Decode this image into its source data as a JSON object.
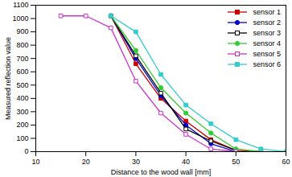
{
  "chart_data": {
    "type": "line",
    "xlabel": "Distance to the wood wall [mm]",
    "ylabel": "Measured reflection value",
    "x": [
      15,
      20,
      25,
      30,
      35,
      40,
      45,
      50,
      55,
      60
    ],
    "xlim": [
      10,
      60
    ],
    "xticks": [
      10,
      20,
      30,
      40,
      50,
      60
    ],
    "ylim": [
      0,
      1100
    ],
    "yticks": [
      0,
      100,
      200,
      300,
      400,
      500,
      600,
      700,
      800,
      900,
      1000,
      1100
    ],
    "grid": false,
    "legend": "upper right",
    "series": [
      {
        "name": "sensor 1",
        "color": "#cc0000",
        "marker": "square",
        "values": [
          null,
          null,
          1020,
          660,
          400,
          230,
          90,
          10,
          0,
          null
        ]
      },
      {
        "name": "sensor 2",
        "color": "#0000cc",
        "marker": "circle",
        "values": [
          null,
          null,
          1020,
          700,
          420,
          200,
          60,
          0,
          null,
          null
        ]
      },
      {
        "name": "sensor 3",
        "color": "#000000",
        "marker": "square-open",
        "values": [
          null,
          null,
          1020,
          720,
          440,
          170,
          80,
          10,
          null,
          null
        ]
      },
      {
        "name": "sensor 4",
        "color": "#33cc33",
        "marker": "circle",
        "values": [
          null,
          null,
          1020,
          760,
          480,
          290,
          140,
          20,
          0,
          null
        ]
      },
      {
        "name": "sensor 5",
        "color": "#cc33cc",
        "marker": "square-open",
        "values": [
          1020,
          1020,
          930,
          530,
          290,
          130,
          20,
          0,
          null,
          null
        ]
      },
      {
        "name": "sensor 6",
        "color": "#33cccc",
        "marker": "square",
        "values": [
          null,
          null,
          1020,
          900,
          580,
          350,
          210,
          90,
          20,
          0
        ]
      }
    ]
  }
}
